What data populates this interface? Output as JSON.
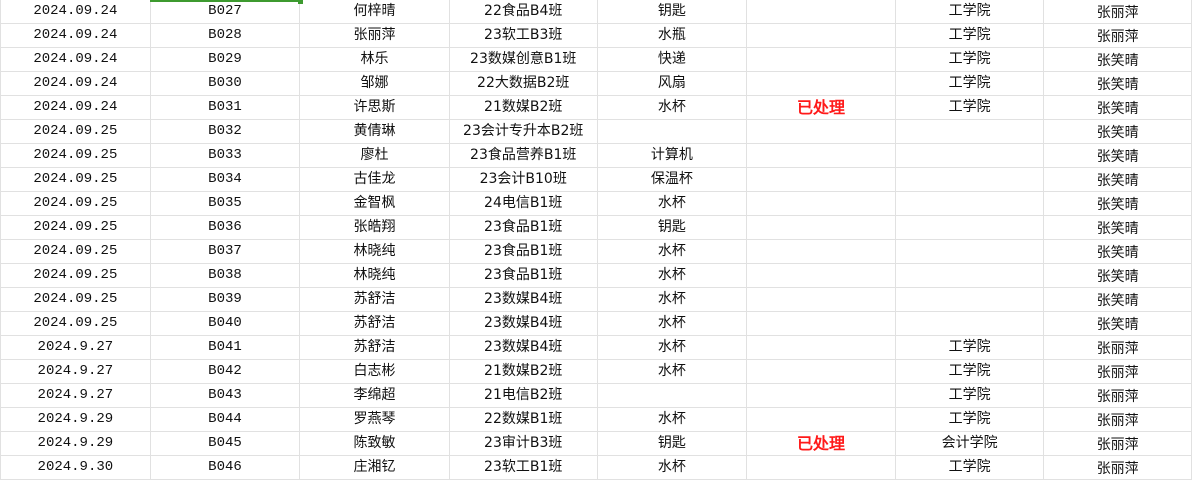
{
  "colors": {
    "status_text": "#ff1a1a",
    "selection": "#3d9a2f",
    "gridline": "#e1e1e1"
  },
  "rows": [
    {
      "date": "2024.09.24",
      "code": "B027",
      "name": "何梓晴",
      "class": "22食品B4班",
      "item": "钥匙",
      "status": "",
      "college": "工学院",
      "handler": "张丽萍"
    },
    {
      "date": "2024.09.24",
      "code": "B028",
      "name": "张丽萍",
      "class": "23软工B3班",
      "item": "水瓶",
      "status": "",
      "college": "工学院",
      "handler": "张丽萍"
    },
    {
      "date": "2024.09.24",
      "code": "B029",
      "name": "林乐",
      "class": "23数媒创意B1班",
      "item": "快递",
      "status": "",
      "college": "工学院",
      "handler": "张笑晴"
    },
    {
      "date": "2024.09.24",
      "code": "B030",
      "name": "邹娜",
      "class": "22大数据B2班",
      "item": "风扇",
      "status": "",
      "college": "工学院",
      "handler": "张笑晴"
    },
    {
      "date": "2024.09.24",
      "code": "B031",
      "name": "许思斯",
      "class": "21数媒B2班",
      "item": "水杯",
      "status": "已处理",
      "college": "工学院",
      "handler": "张笑晴"
    },
    {
      "date": "2024.09.25",
      "code": "B032",
      "name": "黄倩琳",
      "class": "23会计专升本B2班",
      "item": "",
      "status": "",
      "college": "",
      "handler": "张笑晴"
    },
    {
      "date": "2024.09.25",
      "code": "B033",
      "name": "廖杜",
      "class": "23食品营养B1班",
      "item": "计算机",
      "status": "",
      "college": "",
      "handler": "张笑晴"
    },
    {
      "date": "2024.09.25",
      "code": "B034",
      "name": "古佳龙",
      "class": "23会计B10班",
      "item": "保温杯",
      "status": "",
      "college": "",
      "handler": "张笑晴"
    },
    {
      "date": "2024.09.25",
      "code": "B035",
      "name": "金智枫",
      "class": "24电信B1班",
      "item": "水杯",
      "status": "",
      "college": "",
      "handler": "张笑晴"
    },
    {
      "date": "2024.09.25",
      "code": "B036",
      "name": "张皓翔",
      "class": "23食品B1班",
      "item": "钥匙",
      "status": "",
      "college": "",
      "handler": "张笑晴"
    },
    {
      "date": "2024.09.25",
      "code": "B037",
      "name": "林晓纯",
      "class": "23食品B1班",
      "item": "水杯",
      "status": "",
      "college": "",
      "handler": "张笑晴"
    },
    {
      "date": "2024.09.25",
      "code": "B038",
      "name": "林晓纯",
      "class": "23食品B1班",
      "item": "水杯",
      "status": "",
      "college": "",
      "handler": "张笑晴"
    },
    {
      "date": "2024.09.25",
      "code": "B039",
      "name": "苏舒洁",
      "class": "23数媒B4班",
      "item": "水杯",
      "status": "",
      "college": "",
      "handler": "张笑晴"
    },
    {
      "date": "2024.09.25",
      "code": "B040",
      "name": "苏舒洁",
      "class": "23数媒B4班",
      "item": "水杯",
      "status": "",
      "college": "",
      "handler": "张笑晴"
    },
    {
      "date": "2024.9.27",
      "code": "B041",
      "name": "苏舒洁",
      "class": "23数媒B4班",
      "item": "水杯",
      "status": "",
      "college": "工学院",
      "handler": "张丽萍"
    },
    {
      "date": "2024.9.27",
      "code": "B042",
      "name": "白志彬",
      "class": "21数媒B2班",
      "item": "水杯",
      "status": "",
      "college": "工学院",
      "handler": "张丽萍"
    },
    {
      "date": "2024.9.27",
      "code": "B043",
      "name": "李绵超",
      "class": "21电信B2班",
      "item": "",
      "status": "",
      "college": "工学院",
      "handler": "张丽萍"
    },
    {
      "date": "2024.9.29",
      "code": "B044",
      "name": "罗燕琴",
      "class": "22数媒B1班",
      "item": "水杯",
      "status": "",
      "college": "工学院",
      "handler": "张丽萍"
    },
    {
      "date": "2024.9.29",
      "code": "B045",
      "name": "陈致敏",
      "class": "23审计B3班",
      "item": "钥匙",
      "status": "已处理",
      "college": "会计学院",
      "handler": "张丽萍"
    },
    {
      "date": "2024.9.30",
      "code": "B046",
      "name": "庄湘钇",
      "class": "23软工B1班",
      "item": "水杯",
      "status": "",
      "college": "工学院",
      "handler": "张丽萍"
    }
  ]
}
